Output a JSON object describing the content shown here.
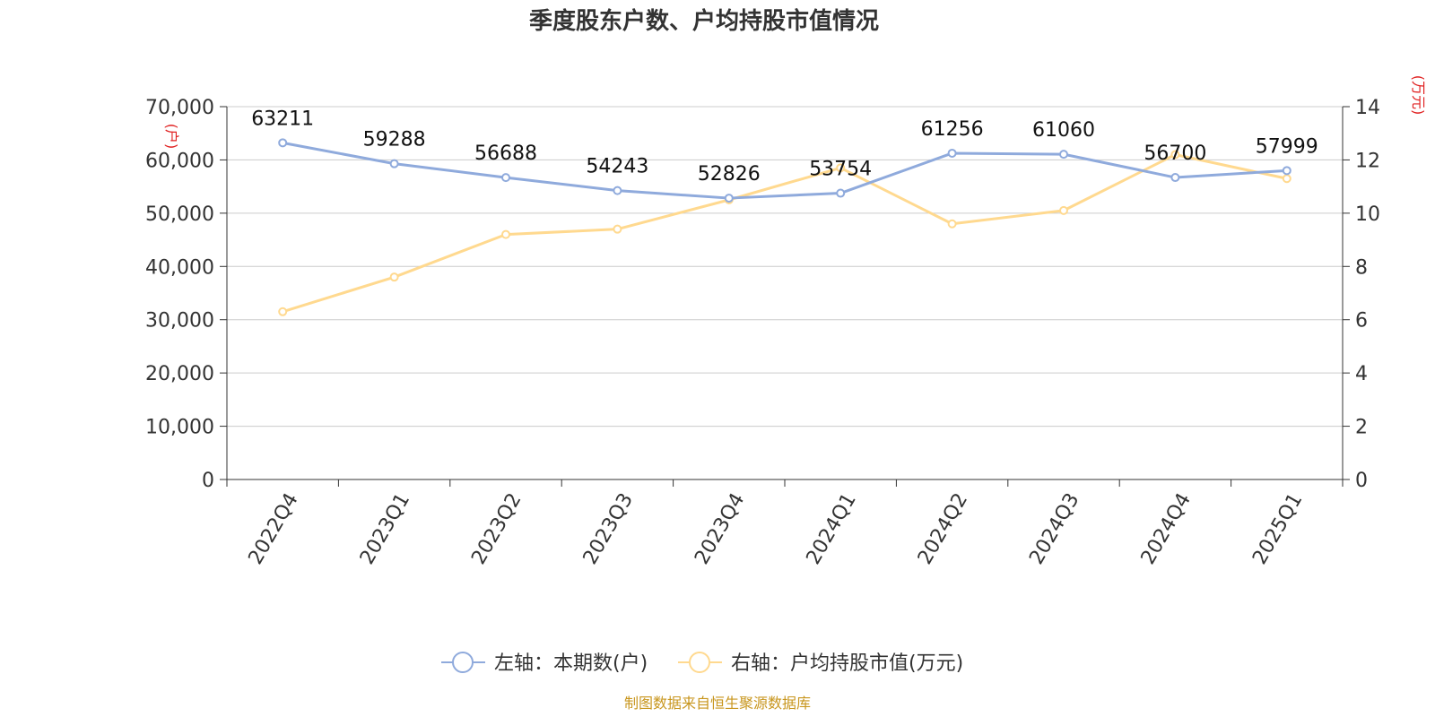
{
  "chart_data": {
    "type": "line",
    "title": "季度股东户数、户均持股市值情况",
    "categories": [
      "2022Q4",
      "2023Q1",
      "2023Q2",
      "2023Q3",
      "2023Q4",
      "2024Q1",
      "2024Q2",
      "2024Q3",
      "2024Q4",
      "2025Q1"
    ],
    "left_axis": {
      "unit_label": "(户)",
      "ylim": [
        0,
        70000
      ],
      "ticks": [
        "0",
        "10,000",
        "20,000",
        "30,000",
        "40,000",
        "50,000",
        "60,000",
        "70,000"
      ]
    },
    "right_axis": {
      "unit_label": "(万元)",
      "ylim": [
        0,
        14
      ],
      "ticks": [
        "0",
        "2",
        "4",
        "6",
        "8",
        "10",
        "12",
        "14"
      ]
    },
    "series": [
      {
        "name": "左轴：本期数(户)",
        "axis": "left",
        "color": "#8faadc",
        "values": [
          63211,
          59288,
          56688,
          54243,
          52826,
          53754,
          61256,
          61060,
          56700,
          57999
        ],
        "labels": [
          "63211",
          "59288",
          "56688",
          "54243",
          "52826",
          "53754",
          "61256",
          "61060",
          "56700",
          "57999"
        ]
      },
      {
        "name": "右轴：户均持股市值(万元)",
        "axis": "right",
        "color": "#ffd98f",
        "values": [
          6.3,
          7.6,
          9.2,
          9.4,
          10.5,
          11.7,
          9.6,
          10.1,
          12.2,
          11.3
        ]
      }
    ],
    "grid": true,
    "legend_position": "bottom-center",
    "source": "制图数据来自恒生聚源数据库"
  }
}
